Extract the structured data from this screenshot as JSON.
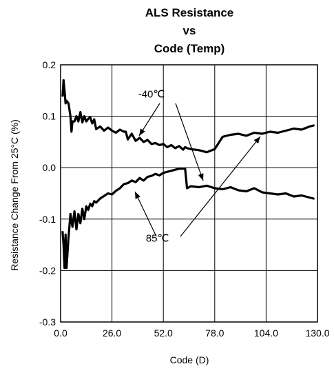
{
  "chart_data": {
    "type": "line",
    "title_lines": [
      "ALS Resistance",
      "vs",
      "Code (Temp)"
    ],
    "xlabel": "Code (D)",
    "ylabel": "Resistance Change From 25°C (%)",
    "xlim": [
      0,
      130
    ],
    "ylim": [
      -0.3,
      0.2
    ],
    "x_ticks": [
      0,
      26,
      52,
      78,
      104,
      130
    ],
    "x_tick_labels": [
      "0.0",
      "26.0",
      "52.0",
      "78.0",
      "104.0",
      "130.0"
    ],
    "y_ticks": [
      -0.3,
      -0.2,
      -0.1,
      0.0,
      0.1,
      0.2
    ],
    "y_tick_labels": [
      "-0.3",
      "-0.2",
      "-0.1",
      "0.0",
      "0.1",
      "0.2"
    ],
    "grid": true,
    "annotations": [
      {
        "text": "-40℃",
        "x": 46,
        "y": 0.143
      },
      {
        "text": "85℃",
        "x": 49,
        "y": -0.137
      }
    ],
    "series": [
      {
        "x": [
          1,
          1.5,
          2,
          2.5,
          3,
          4,
          5,
          5.5,
          6,
          7,
          8,
          9,
          10,
          11,
          12,
          13,
          14,
          15,
          16,
          17,
          18,
          20,
          22,
          24,
          26,
          28,
          30,
          32,
          33,
          34,
          36,
          38,
          40,
          42,
          44,
          46,
          48,
          50,
          52,
          54,
          56,
          58,
          60,
          62,
          63,
          64,
          66,
          70,
          74,
          78,
          82,
          86,
          90,
          94,
          98,
          102,
          106,
          110,
          114,
          118,
          122,
          126,
          128
        ],
        "y": [
          0.14,
          0.17,
          0.15,
          0.125,
          0.13,
          0.125,
          0.1,
          0.07,
          0.09,
          0.09,
          0.1,
          0.09,
          0.108,
          0.088,
          0.1,
          0.09,
          0.095,
          0.098,
          0.086,
          0.094,
          0.075,
          0.08,
          0.072,
          0.078,
          0.072,
          0.068,
          0.074,
          0.07,
          0.07,
          0.055,
          0.066,
          0.052,
          0.058,
          0.05,
          0.054,
          0.046,
          0.048,
          0.044,
          0.046,
          0.04,
          0.044,
          0.038,
          0.042,
          0.035,
          0.04,
          0.038,
          0.036,
          0.034,
          0.03,
          0.036,
          0.06,
          0.064,
          0.066,
          0.062,
          0.068,
          0.066,
          0.07,
          0.068,
          0.072,
          0.076,
          0.074,
          0.08,
          0.082
        ]
      },
      {
        "x": [
          1,
          1.5,
          2,
          2.5,
          3,
          4,
          5,
          5.5,
          6,
          7,
          8,
          9,
          10,
          11,
          12,
          13,
          14,
          15,
          16,
          17,
          18,
          20,
          22,
          24,
          26,
          28,
          30,
          32,
          34,
          36,
          38,
          40,
          42,
          44,
          46,
          48,
          50,
          52,
          54,
          56,
          58,
          60,
          62,
          63,
          64,
          66,
          70,
          74,
          78,
          82,
          86,
          90,
          94,
          98,
          102,
          106,
          110,
          114,
          118,
          122,
          126,
          128
        ],
        "y": [
          -0.125,
          -0.15,
          -0.195,
          -0.13,
          -0.195,
          -0.135,
          -0.09,
          -0.105,
          -0.115,
          -0.085,
          -0.12,
          -0.09,
          -0.108,
          -0.08,
          -0.1,
          -0.075,
          -0.082,
          -0.07,
          -0.075,
          -0.065,
          -0.068,
          -0.06,
          -0.055,
          -0.05,
          -0.052,
          -0.045,
          -0.04,
          -0.032,
          -0.03,
          -0.025,
          -0.028,
          -0.02,
          -0.025,
          -0.018,
          -0.016,
          -0.012,
          -0.015,
          -0.01,
          -0.008,
          -0.006,
          -0.004,
          -0.002,
          -0.002,
          -0.002,
          -0.04,
          -0.036,
          -0.038,
          -0.035,
          -0.04,
          -0.042,
          -0.038,
          -0.044,
          -0.046,
          -0.04,
          -0.048,
          -0.05,
          -0.052,
          -0.05,
          -0.056,
          -0.054,
          -0.058,
          -0.06
        ]
      }
    ]
  }
}
